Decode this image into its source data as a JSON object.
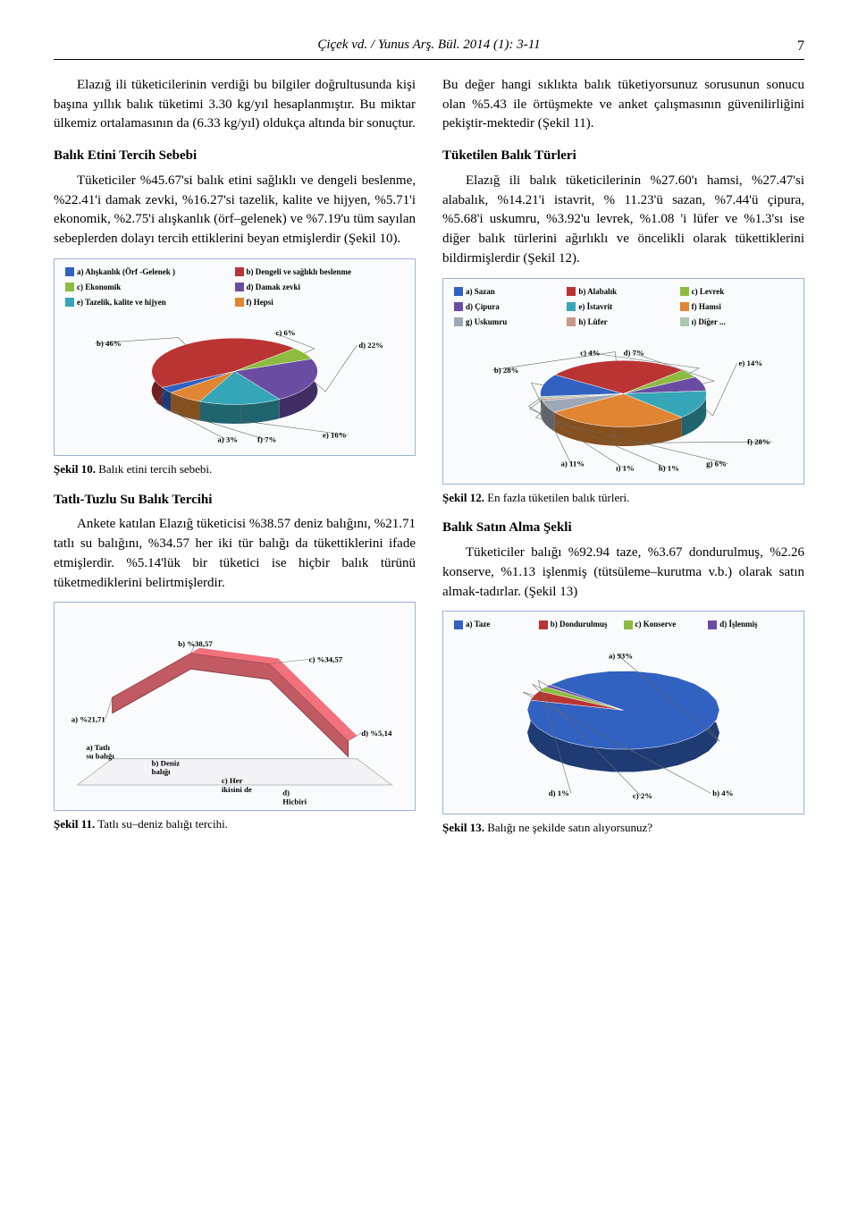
{
  "header": {
    "citation": "Çiçek vd.  /  Yunus Arş. Bül. 2014 (1): 3-11",
    "pageNumber": "7"
  },
  "left": {
    "para1": "Elazığ ili tüketicilerinin verdiği bu bilgiler doğrultusunda kişi başına yıllık balık tüketimi 3.30 kg/yıl hesaplanmıştır. Bu miktar ülkemiz ortalamasının da (6.33 kg/yıl) oldukça altında bir sonuçtur.",
    "h1": "Balık Etini Tercih Sebebi",
    "para2": "Tüketiciler %45.67'si balık etini sağlıklı ve dengeli beslenme,  %22.41'i damak zevki, %16.27'si tazelik, kalite ve hijyen, %5.71'i ekonomik, %2.75'i alışkanlık (örf–gelenek)  ve %7.19'u tüm sayılan sebeplerden dolayı tercih ettiklerini beyan etmişlerdir (Şekil 10).",
    "h2": "Tatlı-Tuzlu Su Balık Tercihi",
    "para3": "Ankete katılan Elazığ tüketicisi %38.57 deniz balığını, %21.71 tatlı su balığını, %34.57 her iki tür balığı da tükettiklerini ifade etmişlerdir. %5.14'lük bir tüketici ise hiçbir balık türünü tüketmediklerini belirtmişlerdir."
  },
  "right": {
    "para1": "Bu değer hangi sıklıkta balık tüketiyorsunuz sorusunun sonucu olan %5.43 ile örtüşmekte ve anket çalışmasının güvenilirliğini pekiştir-mektedir (Şekil 11).",
    "h1": "Tüketilen Balık Türleri",
    "para2": "Elazığ ili balık tüketicilerinin %27.60'ı hamsi, %27.47'si alabalık, %14.21'i istavrit, % 11.23'ü sazan, %7.44'ü çipura, %5.68'i uskumru, %3.92'u levrek, %1.08 'i lüfer ve %1.3'sı ise diğer balık türlerini ağırlıklı ve öncelikli olarak tükettiklerini bildirmişlerdir (Şekil 12).",
    "h2": "Balık Satın Alma Şekli",
    "para3": "Tüketiciler balığı %92.94 taze, %3.67 dondurulmuş, %2.26 konserve, %1.13 işlenmiş (tütsüleme–kurutma v.b.) olarak satın almak-tadırlar. (Şekil 13)"
  },
  "fig10": {
    "captionBold": "Şekil 10.",
    "captionRest": " Balık etini tercih sebebi.",
    "legend": [
      {
        "color": "#3262c1",
        "label": "a) Alışkanlık (Örf -Gelenek )"
      },
      {
        "color": "#ba3434",
        "label": "b) Dengeli ve sağlıklı beslenme"
      },
      {
        "color": "#8dbb3f",
        "label": "c) Ekonomik"
      },
      {
        "color": "#6a4da3",
        "label": "d) Damak zevki"
      },
      {
        "color": "#35a6b7",
        "label": "e) Tazelik, kalite ve hijyen"
      },
      {
        "color": "#e08532",
        "label": "f) Hepsi"
      }
    ],
    "slices": [
      {
        "color": "#3262c1",
        "value": 3,
        "label": "a) 3%"
      },
      {
        "color": "#ba3434",
        "value": 46,
        "label": "b) 46%"
      },
      {
        "color": "#8dbb3f",
        "value": 6,
        "label": "c) 6%"
      },
      {
        "color": "#6a4da3",
        "value": 22,
        "label": "d) 22%"
      },
      {
        "color": "#35a6b7",
        "value": 16,
        "label": "e) 16%"
      },
      {
        "color": "#e08532",
        "value": 7,
        "label": "f) 7%"
      }
    ]
  },
  "fig11": {
    "captionBold": "Şekil 11.",
    "captionRest": " Tatlı su–deniz balığı tercihi.",
    "series": {
      "color": "#c15a63",
      "categories": [
        "a) Tatlı su balığı",
        "b) Deniz balığı",
        "c) Her ikisini de",
        "d) Hiçbiri"
      ],
      "values": [
        21.71,
        38.57,
        34.57,
        5.14
      ],
      "labels": [
        "a) %21,71",
        "b) %38,57",
        "c) %34,57",
        "d) %5,14"
      ]
    }
  },
  "fig12": {
    "captionBold": "Şekil 12.",
    "captionRest": " En fazla tüketilen balık türleri.",
    "legend": [
      {
        "color": "#3262c1",
        "label": "a) Sazan"
      },
      {
        "color": "#ba3434",
        "label": "b) Alabalık"
      },
      {
        "color": "#8dbb3f",
        "label": "c) Levrek"
      },
      {
        "color": "#6a4da3",
        "label": "d) Çipura"
      },
      {
        "color": "#35a6b7",
        "label": "e) İstavrit"
      },
      {
        "color": "#e08532",
        "label": "f) Hamsi"
      },
      {
        "color": "#9da8b7",
        "label": "g) Uskumru"
      },
      {
        "color": "#c99a8c",
        "label": "h) Lüfer"
      },
      {
        "color": "#a9c8b0",
        "label": "ı) Diğer ..."
      }
    ],
    "slices": [
      {
        "color": "#3262c1",
        "value": 11,
        "label": "a) 11%"
      },
      {
        "color": "#ba3434",
        "value": 28,
        "label": "b) 28%"
      },
      {
        "color": "#8dbb3f",
        "value": 4,
        "label": "c) 4%"
      },
      {
        "color": "#6a4da3",
        "value": 7,
        "label": "d) 7%"
      },
      {
        "color": "#35a6b7",
        "value": 14,
        "label": "e) 14%"
      },
      {
        "color": "#e08532",
        "value": 28,
        "label": "f) 28%"
      },
      {
        "color": "#9da8b7",
        "value": 6,
        "label": "g) 6%"
      },
      {
        "color": "#c99a8c",
        "value": 1,
        "label": "h) 1%"
      },
      {
        "color": "#a9c8b0",
        "value": 1,
        "label": "ı) 1%"
      }
    ]
  },
  "fig13": {
    "captionBold": "Şekil 13.",
    "captionRest": " Balığı ne şekilde satın alıyorsunuz?",
    "legend": [
      {
        "color": "#3262c1",
        "label": "a) Taze"
      },
      {
        "color": "#ba3434",
        "label": "b) Dondurulmuş"
      },
      {
        "color": "#8dbb3f",
        "label": "c) Konserve"
      },
      {
        "color": "#6a4da3",
        "label": "d) İşlenmiş"
      }
    ],
    "slices": [
      {
        "color": "#3262c1",
        "value": 93,
        "label": "a) 93%"
      },
      {
        "color": "#ba3434",
        "value": 4,
        "label": "b) 4%"
      },
      {
        "color": "#8dbb3f",
        "value": 2,
        "label": "c) 2%"
      },
      {
        "color": "#6a4da3",
        "value": 1,
        "label": "d) 1%"
      }
    ]
  }
}
